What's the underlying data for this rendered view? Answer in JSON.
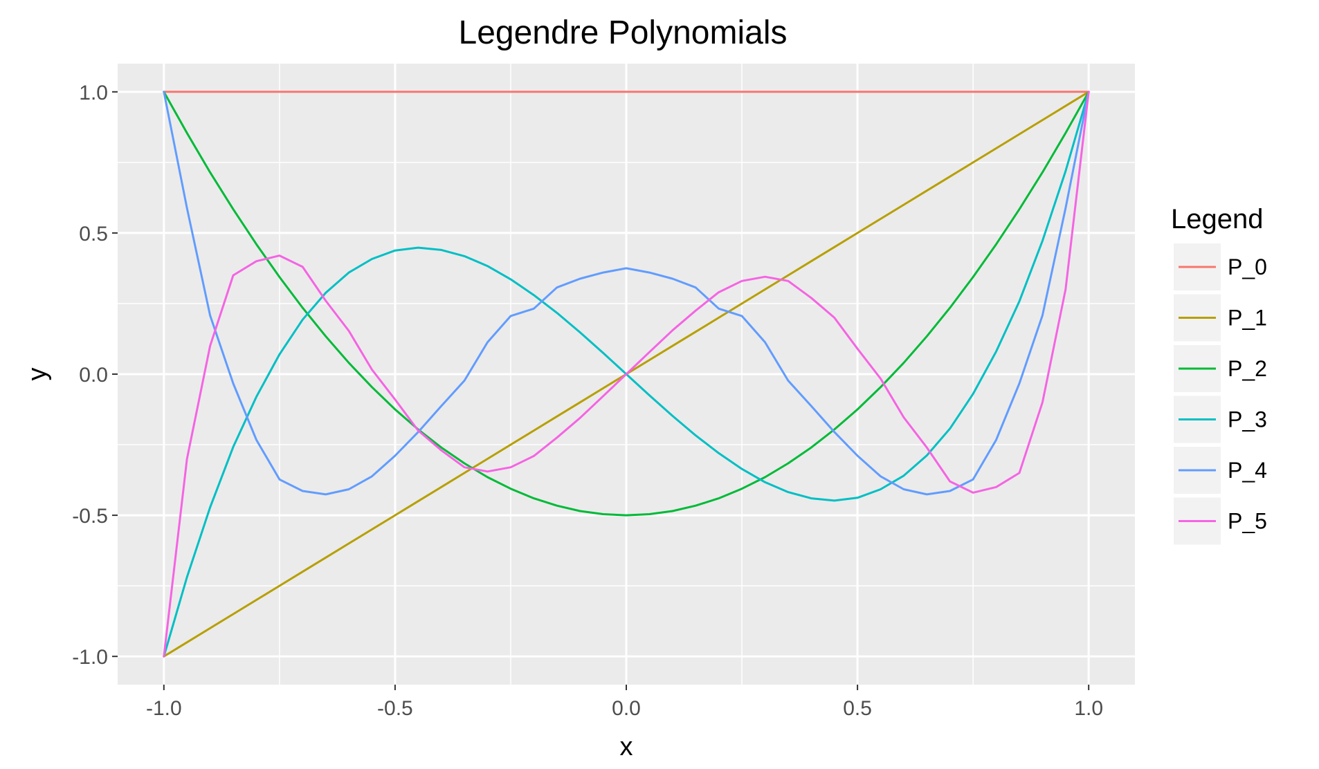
{
  "chart_data": {
    "type": "line",
    "title": "Legendre Polynomials",
    "xlabel": "x",
    "ylabel": "y",
    "xlim": [
      -1.1,
      1.1
    ],
    "ylim": [
      -1.1,
      1.1
    ],
    "x_ticks": [
      -1.0,
      -0.5,
      0.0,
      0.5,
      1.0
    ],
    "y_ticks": [
      -1.0,
      -0.5,
      0.0,
      0.5,
      1.0
    ],
    "x_tick_labels": [
      "-1.0",
      "-0.5",
      "0.0",
      "0.5",
      "1.0"
    ],
    "y_tick_labels": [
      "-1.0",
      "-0.5",
      "0.0",
      "0.5",
      "1.0"
    ],
    "grid": true,
    "legend": {
      "title": "Legend",
      "position": "right"
    },
    "x": [
      -1.0,
      -0.95,
      -0.9,
      -0.85,
      -0.8,
      -0.75,
      -0.7,
      -0.65,
      -0.6,
      -0.55,
      -0.5,
      -0.45,
      -0.4,
      -0.35,
      -0.3,
      -0.25,
      -0.2,
      -0.15,
      -0.1,
      -0.05,
      0.0,
      0.05,
      0.1,
      0.15,
      0.2,
      0.25,
      0.3,
      0.35,
      0.4,
      0.45,
      0.5,
      0.55,
      0.6,
      0.65,
      0.7,
      0.75,
      0.8,
      0.85,
      0.9,
      0.95,
      1.0
    ],
    "series": [
      {
        "name": "P_0",
        "color": "#F8766D",
        "values": [
          1,
          1,
          1,
          1,
          1,
          1,
          1,
          1,
          1,
          1,
          1,
          1,
          1,
          1,
          1,
          1,
          1,
          1,
          1,
          1,
          1,
          1,
          1,
          1,
          1,
          1,
          1,
          1,
          1,
          1,
          1,
          1,
          1,
          1,
          1,
          1,
          1,
          1,
          1,
          1,
          1
        ]
      },
      {
        "name": "P_1",
        "color": "#B79F00",
        "values": [
          -1.0,
          -0.95,
          -0.9,
          -0.85,
          -0.8,
          -0.75,
          -0.7,
          -0.65,
          -0.6,
          -0.55,
          -0.5,
          -0.45,
          -0.4,
          -0.35,
          -0.3,
          -0.25,
          -0.2,
          -0.15,
          -0.1,
          -0.05,
          0.0,
          0.05,
          0.1,
          0.15,
          0.2,
          0.25,
          0.3,
          0.35,
          0.4,
          0.45,
          0.5,
          0.55,
          0.6,
          0.65,
          0.7,
          0.75,
          0.8,
          0.85,
          0.9,
          0.95,
          1.0
        ]
      },
      {
        "name": "P_2",
        "color": "#00BA38",
        "values": [
          1.0,
          0.854,
          0.715,
          0.584,
          0.46,
          0.344,
          0.235,
          0.134,
          0.04,
          -0.046,
          -0.125,
          -0.196,
          -0.26,
          -0.316,
          -0.365,
          -0.406,
          -0.44,
          -0.466,
          -0.485,
          -0.496,
          -0.5,
          -0.496,
          -0.485,
          -0.466,
          -0.44,
          -0.406,
          -0.365,
          -0.316,
          -0.26,
          -0.196,
          -0.125,
          -0.046,
          0.04,
          0.134,
          0.235,
          0.344,
          0.46,
          0.584,
          0.715,
          0.854,
          1.0
        ]
      },
      {
        "name": "P_3",
        "color": "#00BFC4",
        "values": [
          -1.0,
          -0.719,
          -0.472,
          -0.258,
          -0.08,
          0.07,
          0.193,
          0.288,
          0.36,
          0.408,
          0.438,
          0.448,
          0.44,
          0.418,
          0.383,
          0.336,
          0.28,
          0.217,
          0.148,
          0.075,
          0.0,
          -0.075,
          -0.148,
          -0.217,
          -0.28,
          -0.336,
          -0.383,
          -0.418,
          -0.44,
          -0.448,
          -0.438,
          -0.408,
          -0.36,
          -0.288,
          -0.193,
          -0.07,
          0.08,
          0.258,
          0.472,
          0.719,
          1.0
        ]
      },
      {
        "name": "P_4",
        "color": "#619CFF",
        "values": [
          1.0,
          0.588,
          0.208,
          -0.033,
          -0.233,
          -0.373,
          -0.414,
          -0.426,
          -0.408,
          -0.362,
          -0.289,
          -0.205,
          -0.113,
          -0.023,
          0.113,
          0.206,
          0.232,
          0.307,
          0.338,
          0.36,
          0.375,
          0.36,
          0.338,
          0.307,
          0.232,
          0.206,
          0.113,
          -0.023,
          -0.113,
          -0.205,
          -0.289,
          -0.362,
          -0.408,
          -0.426,
          -0.414,
          -0.373,
          -0.233,
          -0.033,
          0.208,
          0.588,
          1.0
        ]
      },
      {
        "name": "P_5",
        "color": "#F564E3",
        "values": [
          -1.0,
          -0.3,
          0.1,
          0.35,
          0.4,
          0.42,
          0.38,
          0.26,
          0.153,
          0.016,
          -0.09,
          -0.2,
          -0.27,
          -0.33,
          -0.345,
          -0.33,
          -0.29,
          -0.225,
          -0.155,
          -0.078,
          0.0,
          0.078,
          0.155,
          0.225,
          0.29,
          0.33,
          0.345,
          0.33,
          0.27,
          0.2,
          0.09,
          -0.016,
          -0.153,
          -0.26,
          -0.38,
          -0.42,
          -0.4,
          -0.35,
          -0.1,
          0.3,
          1.0
        ]
      }
    ]
  }
}
